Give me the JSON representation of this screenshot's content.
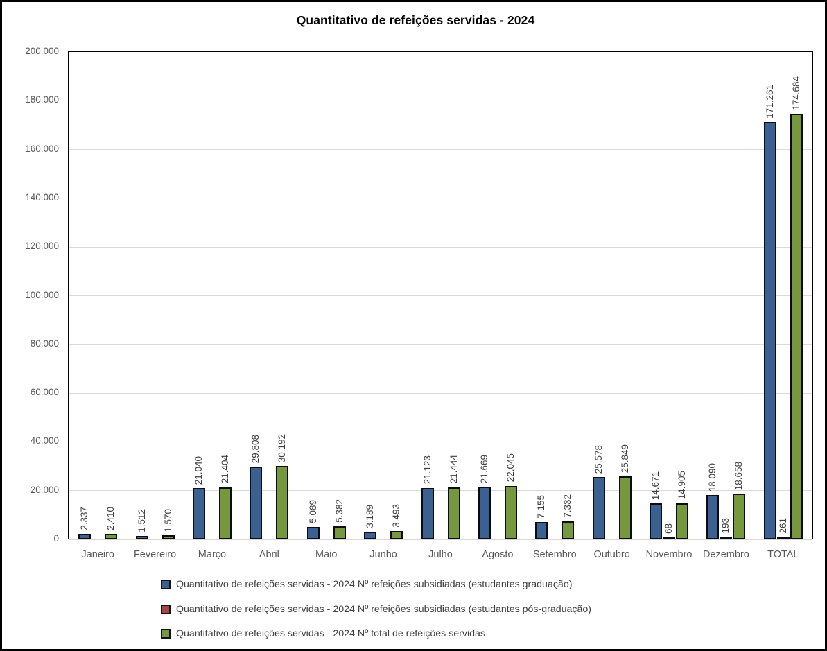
{
  "title": "Quantitativo de refeições servidas - 2024",
  "chart_data": {
    "type": "bar",
    "title": "Quantitativo de refeições servidas - 2024",
    "categories": [
      "Janeiro",
      "Fevereiro",
      "Março",
      "Abril",
      "Maio",
      "Junho",
      "Julho",
      "Agosto",
      "Setembro",
      "Outubro",
      "Novembro",
      "Dezembro",
      "TOTAL"
    ],
    "series": [
      {
        "key": "graduacao",
        "name": "Quantitativo de refeições servidas - 2024 Nº refeições subsidiadas (estudantes graduação)",
        "color": "#3A6191",
        "values": [
          2337,
          1512,
          21040,
          29808,
          5089,
          3189,
          21123,
          21669,
          7155,
          25578,
          14671,
          18090,
          171261
        ]
      },
      {
        "key": "pos-graduacao",
        "name": "Quantitativo de refeições servidas - 2024 Nº refeições subsidiadas (estudantes pós-graduação)",
        "color": "#A8453F",
        "values": [
          null,
          null,
          null,
          null,
          null,
          null,
          null,
          null,
          null,
          null,
          68,
          193,
          261
        ]
      },
      {
        "key": "total",
        "name": "Quantitativo de refeições servidas - 2024 Nº total de refeições servidas",
        "color": "#77993E",
        "values": [
          2410,
          1570,
          21404,
          30192,
          5382,
          3493,
          21444,
          22045,
          7332,
          25849,
          14905,
          18658,
          174684
        ]
      }
    ],
    "ylim": [
      0,
      200000
    ],
    "ytick_step": 20000,
    "ytick_labels": [
      "0",
      "20.000",
      "40.000",
      "60.000",
      "80.000",
      "100.000",
      "120.000",
      "140.000",
      "160.000",
      "180.000",
      "200.000"
    ],
    "thousands_separator": ".",
    "grid": true,
    "legend_position": "bottom-left",
    "colors": {
      "bar_border": "#0B0B12",
      "gridline": "#D9D9D9",
      "axis_labels": "#595959",
      "data_labels": "#3F3F3F",
      "title": "#000000",
      "plot_border": "#000000"
    }
  }
}
